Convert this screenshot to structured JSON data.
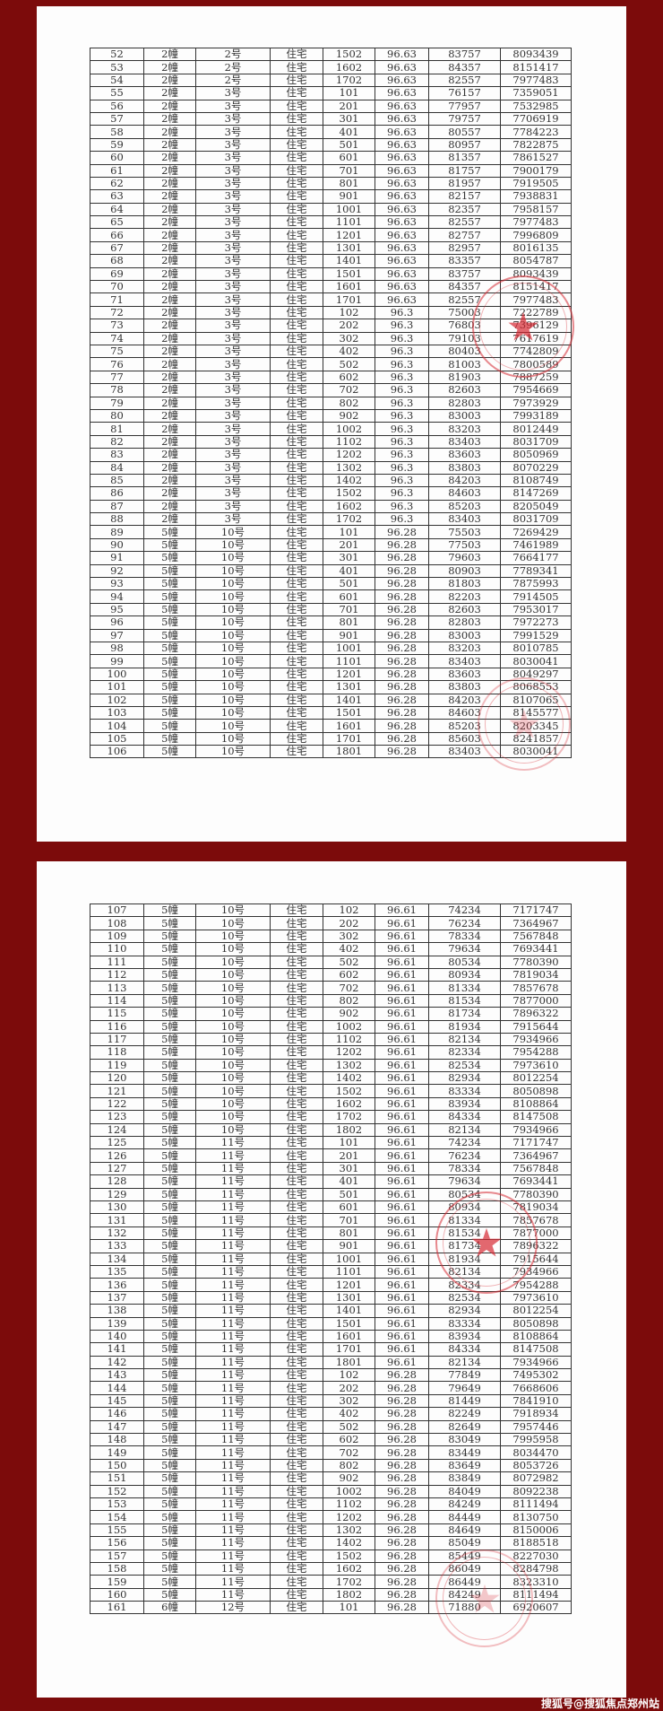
{
  "colors": {
    "background": "#7c0b0b",
    "stamp": "#d62832"
  },
  "watermark": "搜狐号@搜狐焦点郑州站",
  "pages": [
    {
      "rows": [
        [
          "52",
          "2幢",
          "2号",
          "住宅",
          "1502",
          "96.63",
          "83757",
          "8093439"
        ],
        [
          "53",
          "2幢",
          "2号",
          "住宅",
          "1602",
          "96.63",
          "84357",
          "8151417"
        ],
        [
          "54",
          "2幢",
          "2号",
          "住宅",
          "1702",
          "96.63",
          "82557",
          "7977483"
        ],
        [
          "55",
          "2幢",
          "3号",
          "住宅",
          "101",
          "96.63",
          "76157",
          "7359051"
        ],
        [
          "56",
          "2幢",
          "3号",
          "住宅",
          "201",
          "96.63",
          "77957",
          "7532985"
        ],
        [
          "57",
          "2幢",
          "3号",
          "住宅",
          "301",
          "96.63",
          "79757",
          "7706919"
        ],
        [
          "58",
          "2幢",
          "3号",
          "住宅",
          "401",
          "96.63",
          "80557",
          "7784223"
        ],
        [
          "59",
          "2幢",
          "3号",
          "住宅",
          "501",
          "96.63",
          "80957",
          "7822875"
        ],
        [
          "60",
          "2幢",
          "3号",
          "住宅",
          "601",
          "96.63",
          "81357",
          "7861527"
        ],
        [
          "61",
          "2幢",
          "3号",
          "住宅",
          "701",
          "96.63",
          "81757",
          "7900179"
        ],
        [
          "62",
          "2幢",
          "3号",
          "住宅",
          "801",
          "96.63",
          "81957",
          "7919505"
        ],
        [
          "63",
          "2幢",
          "3号",
          "住宅",
          "901",
          "96.63",
          "82157",
          "7938831"
        ],
        [
          "64",
          "2幢",
          "3号",
          "住宅",
          "1001",
          "96.63",
          "82357",
          "7958157"
        ],
        [
          "65",
          "2幢",
          "3号",
          "住宅",
          "1101",
          "96.63",
          "82557",
          "7977483"
        ],
        [
          "66",
          "2幢",
          "3号",
          "住宅",
          "1201",
          "96.63",
          "82757",
          "7996809"
        ],
        [
          "67",
          "2幢",
          "3号",
          "住宅",
          "1301",
          "96.63",
          "82957",
          "8016135"
        ],
        [
          "68",
          "2幢",
          "3号",
          "住宅",
          "1401",
          "96.63",
          "83357",
          "8054787"
        ],
        [
          "69",
          "2幢",
          "3号",
          "住宅",
          "1501",
          "96.63",
          "83757",
          "8093439"
        ],
        [
          "70",
          "2幢",
          "3号",
          "住宅",
          "1601",
          "96.63",
          "84357",
          "8151417"
        ],
        [
          "71",
          "2幢",
          "3号",
          "住宅",
          "1701",
          "96.63",
          "82557",
          "7977483"
        ],
        [
          "72",
          "2幢",
          "3号",
          "住宅",
          "102",
          "96.3",
          "75003",
          "7222789"
        ],
        [
          "73",
          "2幢",
          "3号",
          "住宅",
          "202",
          "96.3",
          "76803",
          "7396129"
        ],
        [
          "74",
          "2幢",
          "3号",
          "住宅",
          "302",
          "96.3",
          "79103",
          "7617619"
        ],
        [
          "75",
          "2幢",
          "3号",
          "住宅",
          "402",
          "96.3",
          "80403",
          "7742809"
        ],
        [
          "76",
          "2幢",
          "3号",
          "住宅",
          "502",
          "96.3",
          "81003",
          "7800589"
        ],
        [
          "77",
          "2幢",
          "3号",
          "住宅",
          "602",
          "96.3",
          "81903",
          "7887259"
        ],
        [
          "78",
          "2幢",
          "3号",
          "住宅",
          "702",
          "96.3",
          "82603",
          "7954669"
        ],
        [
          "79",
          "2幢",
          "3号",
          "住宅",
          "802",
          "96.3",
          "82803",
          "7973929"
        ],
        [
          "80",
          "2幢",
          "3号",
          "住宅",
          "902",
          "96.3",
          "83003",
          "7993189"
        ],
        [
          "81",
          "2幢",
          "3号",
          "住宅",
          "1002",
          "96.3",
          "83203",
          "8012449"
        ],
        [
          "82",
          "2幢",
          "3号",
          "住宅",
          "1102",
          "96.3",
          "83403",
          "8031709"
        ],
        [
          "83",
          "2幢",
          "3号",
          "住宅",
          "1202",
          "96.3",
          "83603",
          "8050969"
        ],
        [
          "84",
          "2幢",
          "3号",
          "住宅",
          "1302",
          "96.3",
          "83803",
          "8070229"
        ],
        [
          "85",
          "2幢",
          "3号",
          "住宅",
          "1402",
          "96.3",
          "84203",
          "8108749"
        ],
        [
          "86",
          "2幢",
          "3号",
          "住宅",
          "1502",
          "96.3",
          "84603",
          "8147269"
        ],
        [
          "87",
          "2幢",
          "3号",
          "住宅",
          "1602",
          "96.3",
          "85203",
          "8205049"
        ],
        [
          "88",
          "2幢",
          "3号",
          "住宅",
          "1702",
          "96.3",
          "83403",
          "8031709"
        ],
        [
          "89",
          "5幢",
          "10号",
          "住宅",
          "101",
          "96.28",
          "75503",
          "7269429"
        ],
        [
          "90",
          "5幢",
          "10号",
          "住宅",
          "201",
          "96.28",
          "77503",
          "7461989"
        ],
        [
          "91",
          "5幢",
          "10号",
          "住宅",
          "301",
          "96.28",
          "79603",
          "7664177"
        ],
        [
          "92",
          "5幢",
          "10号",
          "住宅",
          "401",
          "96.28",
          "80903",
          "7789341"
        ],
        [
          "93",
          "5幢",
          "10号",
          "住宅",
          "501",
          "96.28",
          "81803",
          "7875993"
        ],
        [
          "94",
          "5幢",
          "10号",
          "住宅",
          "601",
          "96.28",
          "82203",
          "7914505"
        ],
        [
          "95",
          "5幢",
          "10号",
          "住宅",
          "701",
          "96.28",
          "82603",
          "7953017"
        ],
        [
          "96",
          "5幢",
          "10号",
          "住宅",
          "801",
          "96.28",
          "82803",
          "7972273"
        ],
        [
          "97",
          "5幢",
          "10号",
          "住宅",
          "901",
          "96.28",
          "83003",
          "7991529"
        ],
        [
          "98",
          "5幢",
          "10号",
          "住宅",
          "1001",
          "96.28",
          "83203",
          "8010785"
        ],
        [
          "99",
          "5幢",
          "10号",
          "住宅",
          "1101",
          "96.28",
          "83403",
          "8030041"
        ],
        [
          "100",
          "5幢",
          "10号",
          "住宅",
          "1201",
          "96.28",
          "83603",
          "8049297"
        ],
        [
          "101",
          "5幢",
          "10号",
          "住宅",
          "1301",
          "96.28",
          "83803",
          "8068553"
        ],
        [
          "102",
          "5幢",
          "10号",
          "住宅",
          "1401",
          "96.28",
          "84203",
          "8107065"
        ],
        [
          "103",
          "5幢",
          "10号",
          "住宅",
          "1501",
          "96.28",
          "84603",
          "8145577"
        ],
        [
          "104",
          "5幢",
          "10号",
          "住宅",
          "1601",
          "96.28",
          "85203",
          "8203345"
        ],
        [
          "105",
          "5幢",
          "10号",
          "住宅",
          "1701",
          "96.28",
          "85603",
          "8241857"
        ],
        [
          "106",
          "5幢",
          "10号",
          "住宅",
          "1801",
          "96.28",
          "83403",
          "8030041"
        ]
      ]
    },
    {
      "rows": [
        [
          "107",
          "5幢",
          "10号",
          "住宅",
          "102",
          "96.61",
          "74234",
          "7171747"
        ],
        [
          "108",
          "5幢",
          "10号",
          "住宅",
          "202",
          "96.61",
          "76234",
          "7364967"
        ],
        [
          "109",
          "5幢",
          "10号",
          "住宅",
          "302",
          "96.61",
          "78334",
          "7567848"
        ],
        [
          "110",
          "5幢",
          "10号",
          "住宅",
          "402",
          "96.61",
          "79634",
          "7693441"
        ],
        [
          "111",
          "5幢",
          "10号",
          "住宅",
          "502",
          "96.61",
          "80534",
          "7780390"
        ],
        [
          "112",
          "5幢",
          "10号",
          "住宅",
          "602",
          "96.61",
          "80934",
          "7819034"
        ],
        [
          "113",
          "5幢",
          "10号",
          "住宅",
          "702",
          "96.61",
          "81334",
          "7857678"
        ],
        [
          "114",
          "5幢",
          "10号",
          "住宅",
          "802",
          "96.61",
          "81534",
          "7877000"
        ],
        [
          "115",
          "5幢",
          "10号",
          "住宅",
          "902",
          "96.61",
          "81734",
          "7896322"
        ],
        [
          "116",
          "5幢",
          "10号",
          "住宅",
          "1002",
          "96.61",
          "81934",
          "7915644"
        ],
        [
          "117",
          "5幢",
          "10号",
          "住宅",
          "1102",
          "96.61",
          "82134",
          "7934966"
        ],
        [
          "118",
          "5幢",
          "10号",
          "住宅",
          "1202",
          "96.61",
          "82334",
          "7954288"
        ],
        [
          "119",
          "5幢",
          "10号",
          "住宅",
          "1302",
          "96.61",
          "82534",
          "7973610"
        ],
        [
          "120",
          "5幢",
          "10号",
          "住宅",
          "1402",
          "96.61",
          "82934",
          "8012254"
        ],
        [
          "121",
          "5幢",
          "10号",
          "住宅",
          "1502",
          "96.61",
          "83334",
          "8050898"
        ],
        [
          "122",
          "5幢",
          "10号",
          "住宅",
          "1602",
          "96.61",
          "83934",
          "8108864"
        ],
        [
          "123",
          "5幢",
          "10号",
          "住宅",
          "1702",
          "96.61",
          "84334",
          "8147508"
        ],
        [
          "124",
          "5幢",
          "10号",
          "住宅",
          "1802",
          "96.61",
          "82134",
          "7934966"
        ],
        [
          "125",
          "5幢",
          "11号",
          "住宅",
          "101",
          "96.61",
          "74234",
          "7171747"
        ],
        [
          "126",
          "5幢",
          "11号",
          "住宅",
          "201",
          "96.61",
          "76234",
          "7364967"
        ],
        [
          "127",
          "5幢",
          "11号",
          "住宅",
          "301",
          "96.61",
          "78334",
          "7567848"
        ],
        [
          "128",
          "5幢",
          "11号",
          "住宅",
          "401",
          "96.61",
          "79634",
          "7693441"
        ],
        [
          "129",
          "5幢",
          "11号",
          "住宅",
          "501",
          "96.61",
          "80534",
          "7780390"
        ],
        [
          "130",
          "5幢",
          "11号",
          "住宅",
          "601",
          "96.61",
          "80934",
          "7819034"
        ],
        [
          "131",
          "5幢",
          "11号",
          "住宅",
          "701",
          "96.61",
          "81334",
          "7857678"
        ],
        [
          "132",
          "5幢",
          "11号",
          "住宅",
          "801",
          "96.61",
          "81534",
          "7877000"
        ],
        [
          "133",
          "5幢",
          "11号",
          "住宅",
          "901",
          "96.61",
          "81734",
          "7896322"
        ],
        [
          "134",
          "5幢",
          "11号",
          "住宅",
          "1001",
          "96.61",
          "81934",
          "7915644"
        ],
        [
          "135",
          "5幢",
          "11号",
          "住宅",
          "1101",
          "96.61",
          "82134",
          "7934966"
        ],
        [
          "136",
          "5幢",
          "11号",
          "住宅",
          "1201",
          "96.61",
          "82334",
          "7954288"
        ],
        [
          "137",
          "5幢",
          "11号",
          "住宅",
          "1301",
          "96.61",
          "82534",
          "7973610"
        ],
        [
          "138",
          "5幢",
          "11号",
          "住宅",
          "1401",
          "96.61",
          "82934",
          "8012254"
        ],
        [
          "139",
          "5幢",
          "11号",
          "住宅",
          "1501",
          "96.61",
          "83334",
          "8050898"
        ],
        [
          "140",
          "5幢",
          "11号",
          "住宅",
          "1601",
          "96.61",
          "83934",
          "8108864"
        ],
        [
          "141",
          "5幢",
          "11号",
          "住宅",
          "1701",
          "96.61",
          "84334",
          "8147508"
        ],
        [
          "142",
          "5幢",
          "11号",
          "住宅",
          "1801",
          "96.61",
          "82134",
          "7934966"
        ],
        [
          "143",
          "5幢",
          "11号",
          "住宅",
          "102",
          "96.28",
          "77849",
          "7495302"
        ],
        [
          "144",
          "5幢",
          "11号",
          "住宅",
          "202",
          "96.28",
          "79649",
          "7668606"
        ],
        [
          "145",
          "5幢",
          "11号",
          "住宅",
          "302",
          "96.28",
          "81449",
          "7841910"
        ],
        [
          "146",
          "5幢",
          "11号",
          "住宅",
          "402",
          "96.28",
          "82249",
          "7918934"
        ],
        [
          "147",
          "5幢",
          "11号",
          "住宅",
          "502",
          "96.28",
          "82649",
          "7957446"
        ],
        [
          "148",
          "5幢",
          "11号",
          "住宅",
          "602",
          "96.28",
          "83049",
          "7995958"
        ],
        [
          "149",
          "5幢",
          "11号",
          "住宅",
          "702",
          "96.28",
          "83449",
          "8034470"
        ],
        [
          "150",
          "5幢",
          "11号",
          "住宅",
          "802",
          "96.28",
          "83649",
          "8053726"
        ],
        [
          "151",
          "5幢",
          "11号",
          "住宅",
          "902",
          "96.28",
          "83849",
          "8072982"
        ],
        [
          "152",
          "5幢",
          "11号",
          "住宅",
          "1002",
          "96.28",
          "84049",
          "8092238"
        ],
        [
          "153",
          "5幢",
          "11号",
          "住宅",
          "1102",
          "96.28",
          "84249",
          "8111494"
        ],
        [
          "154",
          "5幢",
          "11号",
          "住宅",
          "1202",
          "96.28",
          "84449",
          "8130750"
        ],
        [
          "155",
          "5幢",
          "11号",
          "住宅",
          "1302",
          "96.28",
          "84649",
          "8150006"
        ],
        [
          "156",
          "5幢",
          "11号",
          "住宅",
          "1402",
          "96.28",
          "85049",
          "8188518"
        ],
        [
          "157",
          "5幢",
          "11号",
          "住宅",
          "1502",
          "96.28",
          "85449",
          "8227030"
        ],
        [
          "158",
          "5幢",
          "11号",
          "住宅",
          "1602",
          "96.28",
          "86049",
          "8284798"
        ],
        [
          "159",
          "5幢",
          "11号",
          "住宅",
          "1702",
          "96.28",
          "86449",
          "8323310"
        ],
        [
          "160",
          "5幢",
          "11号",
          "住宅",
          "1802",
          "96.28",
          "84249",
          "8111494"
        ],
        [
          "161",
          "6幢",
          "12号",
          "住宅",
          "101",
          "96.28",
          "71880",
          "6920607"
        ]
      ]
    }
  ]
}
